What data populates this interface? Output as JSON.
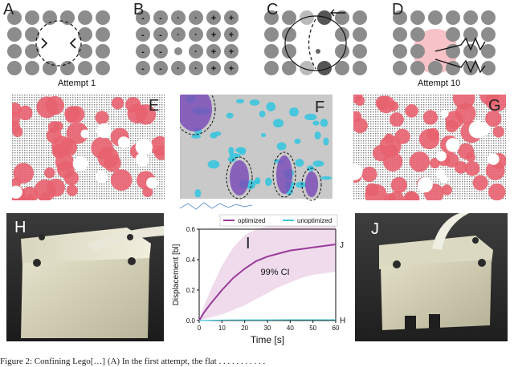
{
  "panels": {
    "A": {
      "label": "A",
      "caption": "Attempt 1"
    },
    "B": {
      "label": "B"
    },
    "C": {
      "label": "C"
    },
    "D": {
      "label": "D",
      "caption": "Attempt 10"
    },
    "E": {
      "label": "E"
    },
    "F": {
      "label": "F"
    },
    "G": {
      "label": "G"
    },
    "H": {
      "label": "H"
    },
    "I": {
      "label": "I"
    },
    "J": {
      "label": "J"
    }
  },
  "grid_b_signs": [
    [
      "-",
      "-",
      "·",
      "·",
      "+",
      "+"
    ],
    [
      "-",
      "-",
      "·",
      "·",
      "+",
      "+"
    ],
    [
      "-",
      "-",
      "",
      "·",
      "+",
      "+"
    ],
    [
      "-",
      "-",
      "·",
      "·",
      "+",
      "+"
    ]
  ],
  "chart_data": {
    "type": "line",
    "xlabel": "Time [s]",
    "ylabel": "Displacement [bl]",
    "xlim": [
      0,
      60
    ],
    "ylim": [
      0,
      0.6
    ],
    "xticks": [
      "0",
      "10",
      "20",
      "30",
      "40",
      "50",
      "60"
    ],
    "yticks": [
      "0.0",
      "0.2",
      "0.4",
      "0.6"
    ],
    "legend_position": "top",
    "annotation": "99% CI",
    "series": [
      {
        "name": "optimized",
        "color": "#9b3a9b",
        "end_label": "J",
        "x": [
          0,
          2,
          5,
          10,
          15,
          20,
          25,
          30,
          35,
          40,
          45,
          50,
          55,
          60
        ],
        "y": [
          0.0,
          0.05,
          0.11,
          0.2,
          0.28,
          0.34,
          0.39,
          0.42,
          0.44,
          0.46,
          0.47,
          0.48,
          0.49,
          0.5
        ],
        "ci_upper": [
          0.0,
          0.09,
          0.2,
          0.36,
          0.48,
          0.56,
          0.6,
          0.62,
          0.63,
          0.64,
          0.64,
          0.65,
          0.65,
          0.65
        ],
        "ci_lower": [
          0.0,
          0.01,
          0.02,
          0.04,
          0.07,
          0.1,
          0.14,
          0.18,
          0.22,
          0.25,
          0.28,
          0.3,
          0.31,
          0.32
        ]
      },
      {
        "name": "unoptimized",
        "color": "#3fc6d6",
        "end_label": "H",
        "x": [
          0,
          10,
          20,
          30,
          40,
          50,
          60
        ],
        "y": [
          0.0,
          0.003,
          0.004,
          0.004,
          0.005,
          0.005,
          0.005
        ]
      }
    ]
  },
  "caption": "Figure 2: Confining Lego[…] (A) In the first attempt, the flat . . . . . . . . . . ."
}
